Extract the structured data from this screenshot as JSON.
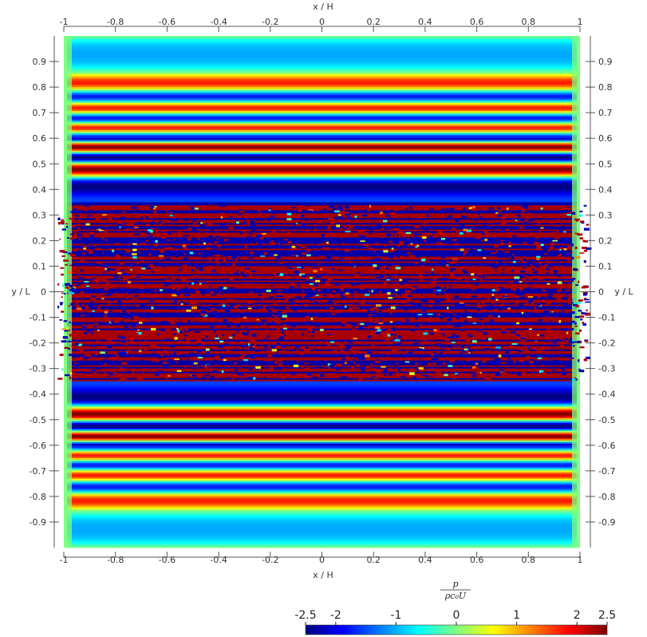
{
  "chart_data": {
    "type": "heatmap",
    "title": "",
    "xlabel": "x / H",
    "ylabel": "y / L",
    "xlim": [
      -1,
      1
    ],
    "ylim": [
      -1,
      1
    ],
    "x_ticks": [
      "-1",
      "-0.8",
      "-0.6",
      "-0.4",
      "-0.2",
      "0",
      "0.2",
      "0.4",
      "0.6",
      "0.8",
      "1"
    ],
    "x_tick_values": [
      -1,
      -0.8,
      -0.6,
      -0.4,
      -0.2,
      0,
      0.2,
      0.4,
      0.6,
      0.8,
      1
    ],
    "y_ticks": [
      "0.9",
      "0.8",
      "0.7",
      "0.6",
      "0.5",
      "0.4",
      "0.3",
      "0.2",
      "0.1",
      "0",
      "-0.1",
      "-0.2",
      "-0.3",
      "-0.4",
      "-0.5",
      "-0.6",
      "-0.7",
      "-0.8",
      "-0.9"
    ],
    "y_tick_values": [
      0.9,
      0.8,
      0.7,
      0.6,
      0.5,
      0.4,
      0.3,
      0.2,
      0.1,
      0,
      -0.1,
      -0.2,
      -0.3,
      -0.4,
      -0.5,
      -0.6,
      -0.7,
      -0.8,
      -0.9
    ],
    "field": "horizontal pressure bands, chaotic core for |y| < 0.35",
    "colormap": "jet",
    "colorbar": {
      "title_num": "p",
      "title_den": "ρc₀U",
      "range": [
        -2.5,
        2.5
      ],
      "tick_labels": [
        "-2.5",
        "-2",
        "-1",
        "0",
        "1",
        "2",
        "2.5"
      ],
      "tick_values": [
        -2.5,
        -2,
        -1,
        0,
        1,
        2,
        2.5
      ],
      "placement": "bottom-right"
    },
    "grid": false
  }
}
